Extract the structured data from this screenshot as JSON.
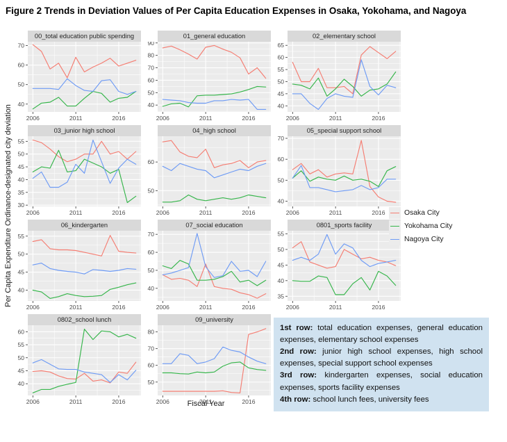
{
  "figure": {
    "title": "Figure 2 Trends in Deviation Values of Per Capita Education Expenses in Osaka, Yokohama, and Nagoya",
    "y_axis_label": "Per Capita Expenditure Ordinance-designated city deviation",
    "x_axis_label": "Fiscal Year"
  },
  "legend": {
    "items": [
      {
        "label": "Osaka City",
        "color": "#F57D72"
      },
      {
        "label": "Yokohama City",
        "color": "#35B54A"
      },
      {
        "label": "Nagoya City",
        "color": "#6E9BF5"
      }
    ]
  },
  "chart_common": {
    "x_years": [
      2006,
      2007,
      2008,
      2009,
      2010,
      2011,
      2012,
      2013,
      2014,
      2015,
      2016,
      2017,
      2018
    ],
    "x_ticks": [
      2006,
      2011,
      2016
    ],
    "x_minor": [
      2008.5,
      2013.5,
      2018.5
    ],
    "panel_bg": "#EBEBEB",
    "grid_color": "#FFFFFF"
  },
  "chart_data": [
    {
      "type": "line",
      "title": "00_total education public spending",
      "yticks": [
        40,
        50,
        60,
        70
      ],
      "ylim": [
        36,
        72
      ],
      "series": [
        {
          "name": "Osaka City",
          "values": [
            70.5,
            67,
            58,
            61,
            53.5,
            64,
            56.5,
            59,
            61,
            63.5,
            59.5,
            61,
            62.5
          ]
        },
        {
          "name": "Yokohama City",
          "values": [
            37.5,
            40.5,
            41,
            43.5,
            39,
            39,
            43,
            46.5,
            45.5,
            41,
            43,
            43.5,
            46.5
          ]
        },
        {
          "name": "Nagoya City",
          "values": [
            48,
            48,
            48,
            47.5,
            53,
            49.5,
            47,
            46.5,
            52,
            52.5,
            46.5,
            45,
            46.5
          ]
        }
      ]
    },
    {
      "type": "line",
      "title": "01_general education",
      "yticks": [
        40,
        50,
        60,
        70,
        80,
        90
      ],
      "ylim": [
        34.5,
        91
      ],
      "series": [
        {
          "name": "Osaka City",
          "values": [
            86,
            87.5,
            84.5,
            81,
            77,
            86.5,
            88,
            85,
            82.5,
            78,
            65,
            70,
            61.5
          ]
        },
        {
          "name": "Yokohama City",
          "values": [
            39,
            41,
            41.5,
            38.5,
            47.5,
            48,
            48,
            48.5,
            49,
            50.5,
            52.5,
            55,
            54.5
          ]
        },
        {
          "name": "Nagoya City",
          "values": [
            44.5,
            44,
            43.5,
            42,
            41.5,
            41.5,
            43.5,
            43.5,
            44.5,
            44,
            44.5,
            36.5,
            36.5
          ]
        }
      ]
    },
    {
      "type": "line",
      "title": "02_elementary school",
      "yticks": [
        40,
        45,
        50,
        55,
        60,
        65
      ],
      "ylim": [
        37.5,
        66.5
      ],
      "series": [
        {
          "name": "Osaka City",
          "values": [
            58,
            50,
            50,
            55.5,
            47.5,
            47.5,
            48,
            45,
            61,
            64.5,
            62,
            59.5,
            62.5
          ]
        },
        {
          "name": "Yokohama City",
          "values": [
            49,
            48.5,
            47,
            51.5,
            44,
            47,
            51,
            48,
            44,
            46.5,
            47,
            49,
            54
          ]
        },
        {
          "name": "Nagoya City",
          "values": [
            45,
            45,
            41,
            38.5,
            43,
            45,
            44,
            43.5,
            59,
            48,
            44.5,
            48.5,
            47.5
          ]
        }
      ]
    },
    {
      "type": "line",
      "title": "03_junior high school",
      "yticks": [
        30,
        35,
        40,
        45,
        50,
        55
      ],
      "ylim": [
        29.5,
        57
      ],
      "series": [
        {
          "name": "Osaka City",
          "values": [
            55.5,
            54.5,
            52,
            49,
            47,
            48,
            50,
            50,
            55,
            50,
            51,
            48,
            51
          ]
        },
        {
          "name": "Yokohama City",
          "values": [
            43,
            45,
            44.5,
            51.5,
            43,
            43.5,
            48,
            46.5,
            45,
            42.5,
            44,
            31,
            33.5
          ]
        },
        {
          "name": "Nagoya City",
          "values": [
            40.5,
            43,
            37,
            37,
            39,
            46,
            42.5,
            55.5,
            47,
            38.5,
            44.5,
            48,
            46
          ]
        }
      ]
    },
    {
      "type": "line",
      "title": "04_high school",
      "yticks": [
        50,
        60
      ],
      "ylim": [
        44.5,
        69
      ],
      "series": [
        {
          "name": "Osaka City",
          "values": [
            67,
            67.5,
            63.5,
            62,
            61.5,
            64.5,
            58,
            59,
            59.5,
            60.5,
            58,
            60,
            60.5
          ]
        },
        {
          "name": "Yokohama City",
          "values": [
            46,
            46,
            46.5,
            48.5,
            47,
            46.5,
            47,
            47.5,
            47,
            47.5,
            48.5,
            48,
            47.5
          ]
        },
        {
          "name": "Nagoya City",
          "values": [
            58.5,
            57,
            59.5,
            58.5,
            57.5,
            57,
            54.5,
            55.5,
            56.5,
            57.5,
            57,
            58.5,
            59.5
          ]
        }
      ]
    },
    {
      "type": "line",
      "title": "05_special support school",
      "yticks": [
        40,
        50,
        60,
        70
      ],
      "ylim": [
        37.5,
        71
      ],
      "series": [
        {
          "name": "Osaka City",
          "values": [
            55,
            58,
            53,
            55,
            51.5,
            53,
            53.5,
            53,
            69,
            47,
            42,
            40,
            39.5
          ]
        },
        {
          "name": "Yokohama City",
          "values": [
            51,
            54.5,
            49.5,
            51.5,
            50.5,
            50,
            52,
            50,
            50.5,
            49.5,
            47,
            54.5,
            56.5
          ]
        },
        {
          "name": "Nagoya City",
          "values": [
            51,
            57,
            46.5,
            46.5,
            45.5,
            44.5,
            45,
            45.5,
            47.5,
            45.5,
            46.5,
            50.5,
            50.5
          ]
        }
      ]
    },
    {
      "type": "line",
      "title": "06_kindergarten",
      "yticks": [
        40,
        45,
        50,
        55
      ],
      "ylim": [
        37,
        56.5
      ],
      "series": [
        {
          "name": "Osaka City",
          "values": [
            53.5,
            54,
            51.5,
            51.2,
            51.2,
            51,
            50.5,
            50,
            49.5,
            55.2,
            50.8,
            50.5,
            50.3
          ]
        },
        {
          "name": "Yokohama City",
          "values": [
            40,
            39.5,
            37.7,
            38.2,
            39,
            38.5,
            38.2,
            38.3,
            38.5,
            40.2,
            40.8,
            41.5,
            42
          ]
        },
        {
          "name": "Nagoya City",
          "values": [
            47,
            47.5,
            46,
            45.5,
            45.2,
            45,
            44.5,
            45.7,
            45.5,
            45.2,
            45.5,
            46,
            45.8
          ]
        }
      ]
    },
    {
      "type": "line",
      "title": "07_social education",
      "yticks": [
        40,
        50,
        60,
        70
      ],
      "ylim": [
        33,
        72
      ],
      "series": [
        {
          "name": "Osaka City",
          "values": [
            47.5,
            45,
            45.5,
            44.5,
            41,
            53.5,
            41,
            40,
            39.5,
            37.5,
            36.5,
            34.5,
            37
          ]
        },
        {
          "name": "Yokohama City",
          "values": [
            52.5,
            51,
            55.5,
            53.5,
            44.5,
            44.5,
            45,
            46.5,
            49.5,
            43.5,
            44.5,
            41.5,
            44.5
          ]
        },
        {
          "name": "Nagoya City",
          "values": [
            47.5,
            48.5,
            50,
            51.5,
            70.5,
            52,
            46,
            47,
            55,
            49.5,
            50,
            46.5,
            55
          ]
        }
      ]
    },
    {
      "type": "line",
      "title": "0801_sports facility",
      "yticks": [
        35,
        40,
        45,
        50,
        55
      ],
      "ylim": [
        33.5,
        56
      ],
      "series": [
        {
          "name": "Osaka City",
          "values": [
            50.5,
            52.5,
            46,
            45,
            44,
            44.5,
            50,
            48.5,
            47,
            47.5,
            46.5,
            46,
            44.8
          ]
        },
        {
          "name": "Yokohama City",
          "values": [
            40,
            39.8,
            39.8,
            41.5,
            41,
            35.5,
            35.5,
            39,
            41,
            37,
            43,
            41.5,
            38.5
          ]
        },
        {
          "name": "Nagoya City",
          "values": [
            46.5,
            47.5,
            46.5,
            48.5,
            54.8,
            48.5,
            51.8,
            50.5,
            46.5,
            44.5,
            45.5,
            46,
            46.5
          ]
        }
      ]
    },
    {
      "type": "line",
      "title": "0802_school lunch",
      "yticks": [
        40,
        45,
        50,
        55,
        60
      ],
      "ylim": [
        35.5,
        62.5
      ],
      "series": [
        {
          "name": "Osaka City",
          "values": [
            44.7,
            45,
            44.5,
            43,
            42,
            41.8,
            44,
            41,
            41.5,
            40.3,
            44.5,
            44,
            48.3
          ]
        },
        {
          "name": "Yokohama City",
          "values": [
            36.5,
            37.8,
            37.8,
            39,
            39.8,
            40.5,
            61,
            57,
            60.3,
            60,
            58,
            59,
            57.5
          ]
        },
        {
          "name": "Nagoya City",
          "values": [
            48,
            49.3,
            47.5,
            45.7,
            45.5,
            45.5,
            44.5,
            44,
            43.5,
            40.5,
            43.5,
            41.5,
            45.2
          ]
        }
      ]
    },
    {
      "type": "line",
      "title": "09_university",
      "yticks": [
        50,
        60,
        70,
        80
      ],
      "ylim": [
        42,
        84
      ],
      "series": [
        {
          "name": "Osaka City",
          "values": [
            44.5,
            44.5,
            44.5,
            44.5,
            44.5,
            44.5,
            44.5,
            44.8,
            43.8,
            43.5,
            78.5,
            80,
            82
          ]
        },
        {
          "name": "Yokohama City",
          "values": [
            55.5,
            55.5,
            55,
            54.8,
            56,
            55.5,
            56,
            59.5,
            61.5,
            62,
            58.5,
            57.5,
            57
          ]
        },
        {
          "name": "Nagoya City",
          "values": [
            61,
            61,
            67,
            66,
            61,
            62,
            64,
            71,
            69,
            68,
            65,
            62.5,
            61
          ]
        }
      ]
    }
  ],
  "note_box": {
    "rows": [
      {
        "label": "1st row:",
        "text": " total education expenses, general education expenses, elementary school expenses"
      },
      {
        "label": "2nd row:",
        "text": " junior high school expenses, high school expenses, special support school expenses"
      },
      {
        "label": "3rd row:",
        "text": " kindergarten expenses, social education expenses, sports facility expenses"
      },
      {
        "label": "4th row:",
        "text": " school lunch fees, university fees"
      }
    ]
  }
}
